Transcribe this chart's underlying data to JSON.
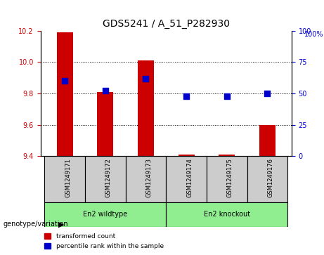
{
  "title": "GDS5241 / A_51_P282930",
  "samples": [
    "GSM1249171",
    "GSM1249172",
    "GSM1249173",
    "GSM1249174",
    "GSM1249175",
    "GSM1249176"
  ],
  "red_values": [
    10.19,
    9.81,
    10.01,
    9.41,
    9.41,
    9.6
  ],
  "blue_values": [
    60,
    52,
    62,
    48,
    48,
    50
  ],
  "ylim_left": [
    9.4,
    10.2
  ],
  "ylim_right": [
    0,
    100
  ],
  "yticks_left": [
    9.4,
    9.6,
    9.8,
    10.0,
    10.2
  ],
  "yticks_right": [
    0,
    25,
    50,
    75,
    100
  ],
  "groups": [
    {
      "label": "En2 wildtype",
      "indices": [
        0,
        1,
        2
      ],
      "color": "#90EE90"
    },
    {
      "label": "En2 knockout",
      "indices": [
        3,
        4,
        5
      ],
      "color": "#90EE90"
    }
  ],
  "group_separator": 2.5,
  "red_color": "#CC0000",
  "blue_color": "#0000CC",
  "left_axis_color": "#CC0000",
  "right_axis_color": "#0000CC",
  "grid_color": "black",
  "bar_width": 0.4,
  "legend_red": "transformed count",
  "legend_blue": "percentile rank within the sample",
  "genotype_label": "genotype/variation",
  "plot_bg": "#FFFFFF",
  "tick_area_bg": "#CCCCCC",
  "green_bg": "#90EE90"
}
